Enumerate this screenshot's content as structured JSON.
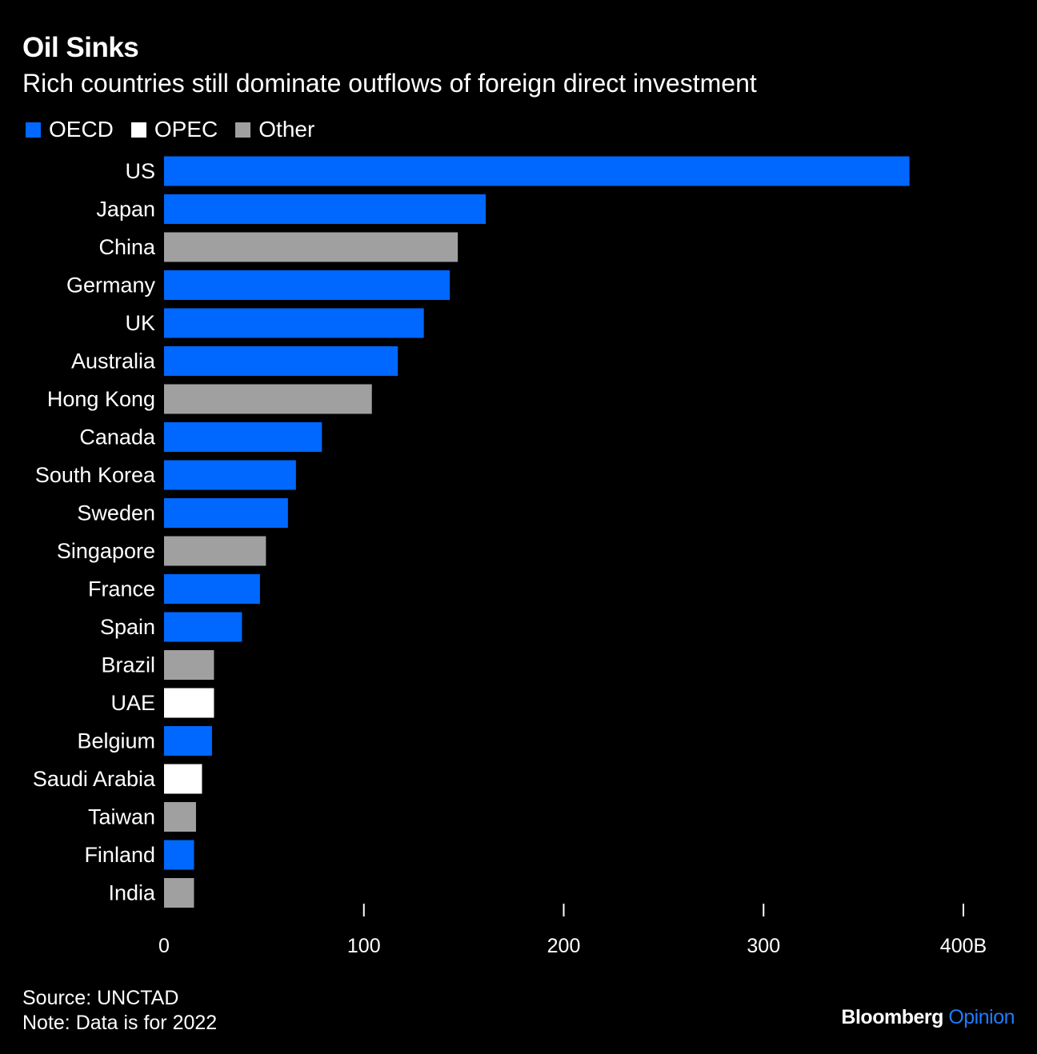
{
  "title": "Oil Sinks",
  "subtitle": "Rich countries still dominate outflows of foreign direct investment",
  "legend": [
    {
      "label": "OECD",
      "color": "#0068ff"
    },
    {
      "label": "OPEC",
      "color": "#ffffff"
    },
    {
      "label": "Other",
      "color": "#a0a0a0"
    }
  ],
  "chart_data": {
    "type": "bar",
    "orientation": "horizontal",
    "title": "Oil Sinks",
    "subtitle": "Rich countries still dominate outflows of foreign direct investment",
    "xlabel": "",
    "ylabel": "",
    "unit": "B",
    "xlim": [
      0,
      400
    ],
    "xticks": [
      0,
      100,
      200,
      300,
      400
    ],
    "xtick_labels": [
      "0",
      "100",
      "200",
      "300",
      "400B"
    ],
    "group_colors": {
      "OECD": "#0068ff",
      "OPEC": "#ffffff",
      "Other": "#a0a0a0"
    },
    "categories": [
      "US",
      "Japan",
      "China",
      "Germany",
      "UK",
      "Australia",
      "Hong Kong",
      "Canada",
      "South Korea",
      "Sweden",
      "Singapore",
      "France",
      "Spain",
      "Brazil",
      "UAE",
      "Belgium",
      "Saudi Arabia",
      "Taiwan",
      "Finland",
      "India"
    ],
    "values": [
      373,
      161,
      147,
      143,
      130,
      117,
      104,
      79,
      66,
      62,
      51,
      48,
      39,
      25,
      25,
      24,
      19,
      16,
      15,
      15
    ],
    "groups": [
      "OECD",
      "OECD",
      "Other",
      "OECD",
      "OECD",
      "OECD",
      "Other",
      "OECD",
      "OECD",
      "OECD",
      "Other",
      "OECD",
      "OECD",
      "Other",
      "OPEC",
      "OECD",
      "OPEC",
      "Other",
      "OECD",
      "Other"
    ]
  },
  "footer": {
    "source": "Source: UNCTAD",
    "note": "Note: Data is for 2022"
  },
  "brand": {
    "name": "Bloomberg",
    "accent": "Opinion"
  }
}
